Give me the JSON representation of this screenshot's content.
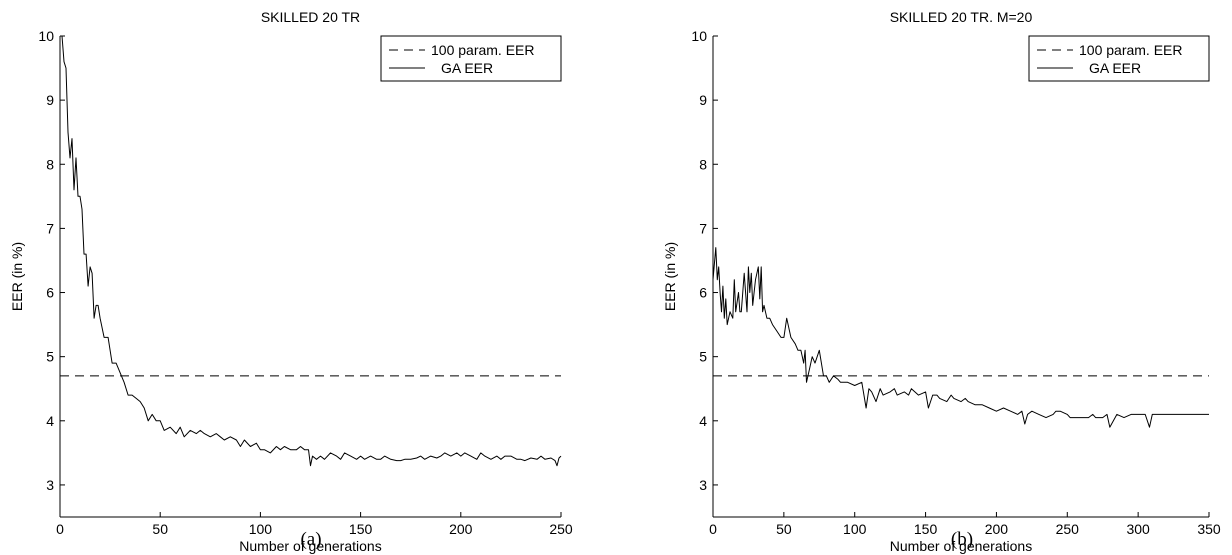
{
  "chart_data": [
    {
      "type": "line",
      "title": "SKILLED 20 TR",
      "xlabel": "Number of generations",
      "ylabel": "EER (in %)",
      "xlim": [
        0,
        250
      ],
      "ylim": [
        2.5,
        10
      ],
      "xticks": [
        0,
        50,
        100,
        150,
        200,
        250
      ],
      "yticks": [
        3,
        4,
        5,
        6,
        7,
        8,
        9,
        10
      ],
      "legend_position": "top-right",
      "grid": false,
      "caption": "(a)",
      "baseline": {
        "name": "100 param. EER",
        "y": 4.7,
        "style": "dashed"
      },
      "series": [
        {
          "name": "GA EER",
          "style": "solid",
          "x": [
            1,
            2,
            3,
            4,
            5,
            6,
            7,
            8,
            9,
            10,
            11,
            12,
            13,
            14,
            15,
            16,
            17,
            18,
            19,
            20,
            22,
            24,
            26,
            28,
            30,
            32,
            34,
            36,
            38,
            40,
            42,
            44,
            46,
            48,
            50,
            52,
            55,
            58,
            60,
            62,
            65,
            68,
            70,
            72,
            75,
            78,
            80,
            82,
            85,
            88,
            90,
            92,
            95,
            98,
            100,
            102,
            105,
            108,
            110,
            112,
            115,
            118,
            120,
            122,
            124,
            125,
            126,
            128,
            130,
            132,
            135,
            138,
            140,
            142,
            145,
            148,
            150,
            152,
            155,
            158,
            160,
            162,
            165,
            168,
            170,
            172,
            175,
            178,
            180,
            182,
            185,
            188,
            190,
            192,
            195,
            198,
            200,
            202,
            205,
            208,
            210,
            212,
            215,
            218,
            220,
            222,
            225,
            228,
            230,
            232,
            235,
            238,
            240,
            242,
            245,
            247,
            248,
            249,
            250
          ],
          "y": [
            10.0,
            9.6,
            9.5,
            8.5,
            8.1,
            8.4,
            7.6,
            8.1,
            7.5,
            7.5,
            7.3,
            6.6,
            6.6,
            6.1,
            6.4,
            6.3,
            5.6,
            5.8,
            5.8,
            5.6,
            5.3,
            5.3,
            4.9,
            4.9,
            4.75,
            4.6,
            4.4,
            4.4,
            4.35,
            4.3,
            4.2,
            4.0,
            4.1,
            4.0,
            4.0,
            3.85,
            3.9,
            3.8,
            3.9,
            3.75,
            3.85,
            3.8,
            3.85,
            3.8,
            3.75,
            3.8,
            3.75,
            3.7,
            3.75,
            3.7,
            3.6,
            3.7,
            3.6,
            3.65,
            3.55,
            3.55,
            3.5,
            3.6,
            3.55,
            3.6,
            3.55,
            3.55,
            3.6,
            3.55,
            3.55,
            3.3,
            3.45,
            3.4,
            3.45,
            3.4,
            3.5,
            3.45,
            3.4,
            3.5,
            3.45,
            3.4,
            3.45,
            3.4,
            3.45,
            3.4,
            3.4,
            3.45,
            3.4,
            3.38,
            3.38,
            3.4,
            3.4,
            3.42,
            3.45,
            3.4,
            3.45,
            3.42,
            3.45,
            3.5,
            3.45,
            3.5,
            3.45,
            3.5,
            3.45,
            3.4,
            3.5,
            3.45,
            3.4,
            3.45,
            3.4,
            3.45,
            3.45,
            3.4,
            3.4,
            3.38,
            3.42,
            3.4,
            3.45,
            3.4,
            3.42,
            3.38,
            3.3,
            3.42,
            3.45
          ]
        }
      ]
    },
    {
      "type": "line",
      "title": "SKILLED 20 TR. M=20",
      "xlabel": "Number of generations",
      "ylabel": "EER (in %)",
      "xlim": [
        0,
        350
      ],
      "ylim": [
        2.5,
        10
      ],
      "xticks": [
        0,
        50,
        100,
        150,
        200,
        250,
        300,
        350
      ],
      "yticks": [
        3,
        4,
        5,
        6,
        7,
        8,
        9,
        10
      ],
      "legend_position": "top-right",
      "grid": false,
      "caption": "(b)",
      "baseline": {
        "name": "100 param. EER",
        "y": 4.7,
        "style": "dashed"
      },
      "series": [
        {
          "name": "GA EER",
          "style": "solid",
          "x": [
            0,
            2,
            3,
            4,
            5,
            6,
            7,
            8,
            9,
            10,
            11,
            12,
            14,
            15,
            16,
            18,
            19,
            20,
            22,
            24,
            25,
            26,
            27,
            28,
            30,
            32,
            33,
            34,
            35,
            36,
            38,
            40,
            42,
            45,
            48,
            50,
            52,
            55,
            58,
            60,
            62,
            64,
            65,
            66,
            68,
            70,
            72,
            75,
            78,
            80,
            82,
            85,
            88,
            90,
            95,
            100,
            105,
            108,
            110,
            112,
            115,
            118,
            120,
            125,
            128,
            130,
            135,
            138,
            140,
            145,
            150,
            152,
            155,
            158,
            160,
            165,
            168,
            170,
            175,
            178,
            180,
            185,
            190,
            195,
            200,
            205,
            210,
            215,
            218,
            220,
            222,
            225,
            230,
            235,
            240,
            242,
            245,
            250,
            252,
            255,
            260,
            265,
            268,
            270,
            275,
            278,
            280,
            285,
            290,
            295,
            298,
            300,
            305,
            308,
            310,
            315,
            320,
            330,
            340,
            345,
            350
          ],
          "y": [
            6.2,
            6.7,
            6.2,
            6.4,
            6.0,
            5.7,
            6.1,
            5.6,
            5.9,
            5.5,
            5.6,
            5.7,
            5.6,
            6.2,
            5.7,
            6.0,
            5.7,
            5.7,
            6.3,
            5.7,
            6.4,
            6.0,
            6.3,
            5.8,
            6.2,
            6.4,
            5.9,
            6.4,
            5.7,
            5.8,
            5.6,
            5.6,
            5.5,
            5.4,
            5.3,
            5.3,
            5.6,
            5.3,
            5.2,
            5.1,
            5.1,
            4.9,
            5.1,
            4.6,
            4.8,
            5.0,
            4.9,
            5.1,
            4.7,
            4.7,
            4.6,
            4.7,
            4.65,
            4.6,
            4.6,
            4.55,
            4.6,
            4.2,
            4.5,
            4.45,
            4.3,
            4.5,
            4.4,
            4.45,
            4.5,
            4.4,
            4.45,
            4.4,
            4.5,
            4.4,
            4.45,
            4.2,
            4.4,
            4.4,
            4.35,
            4.3,
            4.4,
            4.35,
            4.3,
            4.35,
            4.3,
            4.25,
            4.25,
            4.2,
            4.15,
            4.2,
            4.15,
            4.1,
            4.15,
            3.95,
            4.1,
            4.15,
            4.1,
            4.05,
            4.1,
            4.15,
            4.15,
            4.1,
            4.05,
            4.05,
            4.05,
            4.05,
            4.1,
            4.05,
            4.05,
            4.1,
            3.9,
            4.1,
            4.05,
            4.1,
            4.1,
            4.1,
            4.1,
            3.9,
            4.1,
            4.1,
            4.1,
            4.1,
            4.1,
            4.1,
            4.1
          ]
        }
      ]
    }
  ]
}
